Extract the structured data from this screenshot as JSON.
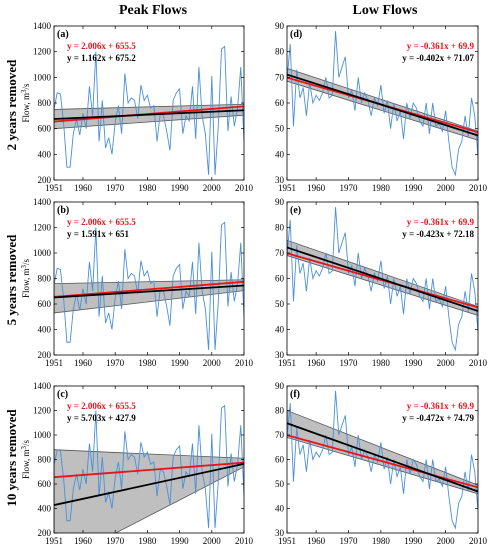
{
  "columns": {
    "left": "Peak Flows",
    "right": "Low Flows"
  },
  "rows": [
    "2 years removed",
    "5 years removed",
    "10 years removed"
  ],
  "colors": {
    "observed": "#4a90d9",
    "full_trend": "#e8131b",
    "reduced_trend": "#000000",
    "band": "#b4b4b4"
  },
  "chart_data": [
    {
      "type": "line",
      "panel": "(a)",
      "row": 0,
      "col": 0,
      "ylabel": "Flow, m^3/s",
      "xlim": [
        1951,
        2010
      ],
      "ylim": [
        200,
        1400
      ],
      "xticks": [
        1951,
        1960,
        1970,
        1980,
        1990,
        2000,
        2010
      ],
      "yticks": [
        200,
        400,
        600,
        800,
        1000,
        1200,
        1400
      ],
      "eq_full": "y = 2.006x + 655.5",
      "eq_reduced": "y = 1.162x + 675.2",
      "full_line": {
        "slope": 2.006,
        "intercept": 655.5
      },
      "reduced_line": {
        "slope": 1.162,
        "intercept": 675.2
      },
      "band": {
        "start": [
          600,
          750
        ],
        "end": [
          705,
          790
        ]
      },
      "series": [
        {
          "values": [
            750,
            880,
            870,
            640,
            300,
            300,
            560,
            680,
            550,
            720,
            600,
            930,
            700,
            1200,
            500,
            820,
            450,
            530,
            400,
            650,
            780,
            560,
            1030,
            800,
            840,
            820,
            680,
            940,
            820,
            860,
            760,
            780,
            500,
            720,
            700,
            580,
            430,
            820,
            880,
            910,
            560,
            700,
            660,
            930,
            520,
            1080,
            700,
            560,
            240,
            1010,
            240,
            610,
            1220,
            1240,
            580,
            850,
            620,
            760,
            1080,
            500
          ]
        }
      ]
    },
    {
      "type": "line",
      "panel": "(b)",
      "row": 1,
      "col": 0,
      "ylabel": "Flow, m^3/s",
      "xlim": [
        1951,
        2010
      ],
      "ylim": [
        200,
        1400
      ],
      "xticks": [
        1951,
        1960,
        1970,
        1980,
        1990,
        2000,
        2010
      ],
      "yticks": [
        200,
        400,
        600,
        800,
        1000,
        1200,
        1400
      ],
      "eq_full": "y = 2.006x + 655.5",
      "eq_reduced": "y = 1.591x + 651",
      "full_line": {
        "slope": 2.006,
        "intercept": 655.5
      },
      "reduced_line": {
        "slope": 1.591,
        "intercept": 651
      },
      "band": {
        "start": [
          530,
          760
        ],
        "end": [
          705,
          790
        ]
      },
      "series": [
        {
          "values": [
            750,
            880,
            870,
            640,
            300,
            300,
            560,
            680,
            550,
            720,
            600,
            930,
            700,
            1200,
            500,
            820,
            450,
            530,
            400,
            650,
            780,
            560,
            1030,
            800,
            840,
            820,
            680,
            940,
            820,
            860,
            760,
            780,
            500,
            720,
            700,
            580,
            430,
            820,
            880,
            910,
            560,
            700,
            660,
            930,
            520,
            1080,
            700,
            560,
            240,
            1010,
            240,
            610,
            1220,
            1240,
            580,
            850,
            620,
            760,
            1080,
            500
          ]
        }
      ]
    },
    {
      "type": "line",
      "panel": "(c)",
      "row": 2,
      "col": 0,
      "ylabel": "Flow, m^3/s",
      "xlim": [
        1951,
        2010
      ],
      "ylim": [
        200,
        1400
      ],
      "xticks": [
        1951,
        1960,
        1970,
        1980,
        1990,
        2000,
        2010
      ],
      "yticks": [
        200,
        400,
        600,
        800,
        1000,
        1200,
        1400
      ],
      "eq_full": "y = 2.006x + 655.5",
      "eq_reduced": "y = 5.703x + 427.9",
      "full_line": {
        "slope": 2.006,
        "intercept": 655.5
      },
      "reduced_line": {
        "slope": 5.703,
        "intercept": 427.9
      },
      "band": {
        "start": [
          -60,
          880
        ],
        "end": [
          740,
          810
        ]
      },
      "series": [
        {
          "values": [
            750,
            880,
            870,
            640,
            300,
            300,
            560,
            680,
            550,
            720,
            600,
            930,
            700,
            1200,
            500,
            820,
            450,
            530,
            400,
            650,
            780,
            560,
            1030,
            800,
            840,
            820,
            680,
            940,
            820,
            860,
            760,
            780,
            500,
            720,
            700,
            580,
            430,
            820,
            880,
            910,
            560,
            700,
            660,
            930,
            520,
            1080,
            700,
            560,
            240,
            1010,
            240,
            610,
            1220,
            1240,
            580,
            850,
            620,
            760,
            1080,
            500
          ]
        }
      ]
    },
    {
      "type": "line",
      "panel": "(d)",
      "row": 0,
      "col": 1,
      "ylabel": "",
      "xlim": [
        1951,
        2010
      ],
      "ylim": [
        30,
        90
      ],
      "xticks": [
        1951,
        1960,
        1970,
        1980,
        1990,
        2000,
        2010
      ],
      "yticks": [
        30,
        40,
        50,
        60,
        70,
        80,
        90
      ],
      "eq_full": "y = -0.361x + 69.9",
      "eq_reduced": "y = -0.402x + 71.07",
      "full_line": {
        "slope": -0.361,
        "intercept": 69.9
      },
      "reduced_line": {
        "slope": -0.402,
        "intercept": 71.07
      },
      "band": {
        "start": [
          68.5,
          73.5
        ],
        "end": [
          45.5,
          49
        ]
      },
      "series": [
        {
          "values": [
            69,
            83,
            51,
            73,
            62,
            66,
            55,
            68,
            60,
            63,
            61,
            64,
            70,
            62,
            63,
            88,
            70,
            74,
            78,
            62,
            65,
            57,
            70,
            60,
            64,
            61,
            55,
            62,
            59,
            67,
            56,
            61,
            50,
            60,
            53,
            57,
            46,
            60,
            54,
            60,
            58,
            53,
            51,
            60,
            48,
            60,
            51,
            52,
            49,
            57,
            45,
            35,
            32,
            42,
            45,
            55,
            47,
            62,
            55,
            39
          ]
        }
      ]
    },
    {
      "type": "line",
      "panel": "(e)",
      "row": 1,
      "col": 1,
      "ylabel": "",
      "xlim": [
        1951,
        2010
      ],
      "ylim": [
        30,
        90
      ],
      "xticks": [
        1951,
        1960,
        1970,
        1980,
        1990,
        2000,
        2010
      ],
      "yticks": [
        30,
        40,
        50,
        60,
        70,
        80,
        90
      ],
      "eq_full": "y = -0.361x + 69.9",
      "eq_reduced": "y = -0.423x + 72.18",
      "full_line": {
        "slope": -0.361,
        "intercept": 69.9
      },
      "reduced_line": {
        "slope": -0.423,
        "intercept": 72.18
      },
      "band": {
        "start": [
          69,
          75
        ],
        "end": [
          45.5,
          49
        ]
      },
      "series": [
        {
          "values": [
            69,
            83,
            51,
            73,
            62,
            66,
            55,
            68,
            60,
            63,
            61,
            64,
            70,
            62,
            63,
            88,
            70,
            74,
            78,
            62,
            65,
            57,
            70,
            60,
            64,
            61,
            55,
            62,
            59,
            67,
            56,
            61,
            50,
            60,
            53,
            57,
            46,
            60,
            54,
            60,
            58,
            53,
            51,
            60,
            48,
            60,
            51,
            52,
            49,
            57,
            45,
            35,
            32,
            42,
            45,
            55,
            47,
            62,
            55,
            39
          ]
        }
      ]
    },
    {
      "type": "line",
      "panel": "(f)",
      "row": 2,
      "col": 1,
      "ylabel": "",
      "xlim": [
        1951,
        2010
      ],
      "ylim": [
        30,
        90
      ],
      "xticks": [
        1951,
        1960,
        1970,
        1980,
        1990,
        2000,
        2010
      ],
      "yticks": [
        30,
        40,
        50,
        60,
        70,
        80,
        90
      ],
      "eq_full": "y = -0.361x + 69.9",
      "eq_reduced": "y = -0.472x + 74.79",
      "full_line": {
        "slope": -0.361,
        "intercept": 69.9
      },
      "reduced_line": {
        "slope": -0.472,
        "intercept": 74.79
      },
      "band": {
        "start": [
          69,
          80
        ],
        "end": [
          46,
          49.5
        ]
      },
      "series": [
        {
          "values": [
            69,
            83,
            51,
            73,
            62,
            66,
            55,
            68,
            60,
            63,
            61,
            64,
            70,
            62,
            63,
            88,
            70,
            74,
            78,
            62,
            65,
            57,
            70,
            60,
            64,
            61,
            55,
            62,
            59,
            67,
            56,
            61,
            50,
            60,
            53,
            57,
            46,
            60,
            54,
            60,
            58,
            53,
            51,
            60,
            48,
            60,
            51,
            52,
            49,
            57,
            45,
            35,
            32,
            42,
            45,
            55,
            47,
            62,
            55,
            39
          ]
        }
      ]
    }
  ]
}
